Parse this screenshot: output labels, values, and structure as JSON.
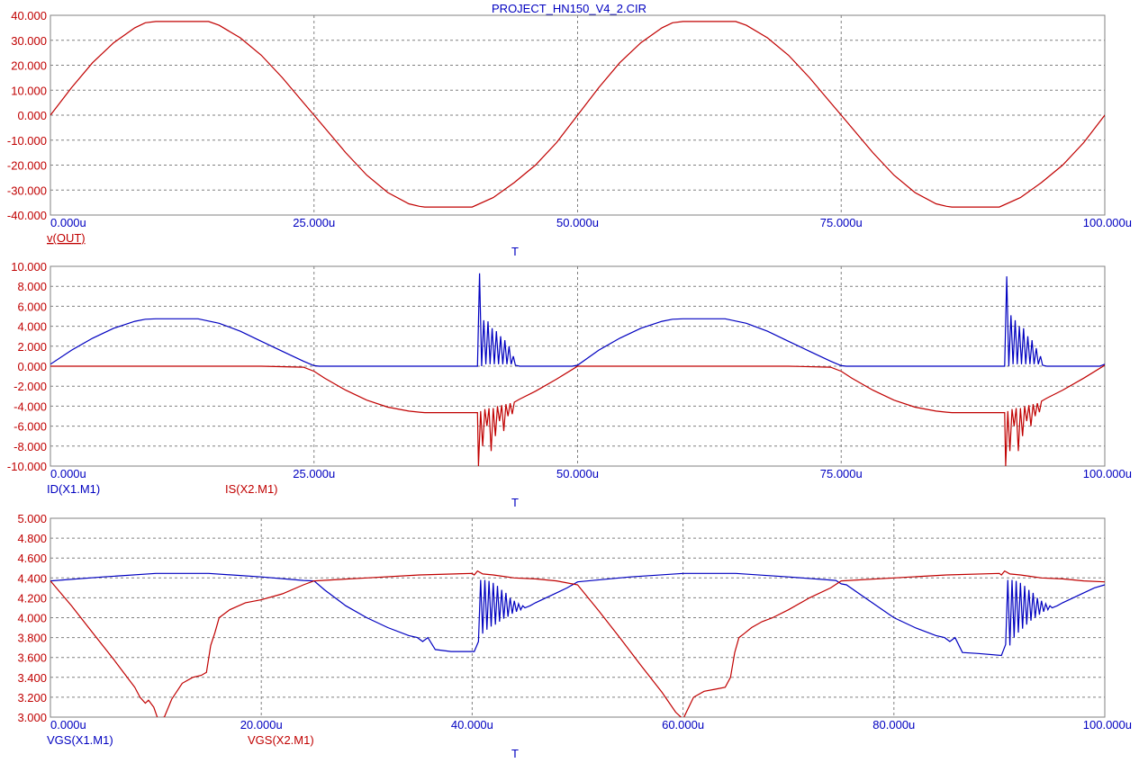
{
  "title": "PROJECT_HN150_V4_2.CIR",
  "colors": {
    "red": "#c00000",
    "blue": "#0000c0",
    "grid": "#808080",
    "frame": "#808080"
  },
  "chart_data": [
    {
      "type": "line",
      "xlabel": "T",
      "x_range": [
        0,
        100
      ],
      "xticks": [
        "0.000u",
        "25.000u",
        "50.000u",
        "75.000u",
        "100.000u"
      ],
      "xtick_values": [
        0,
        25,
        50,
        75,
        100
      ],
      "ylim": [
        -40,
        40
      ],
      "yticks": [
        "40.000",
        "30.000",
        "20.000",
        "10.000",
        "0.000",
        "-10.000",
        "-20.000",
        "-30.000",
        "-40.000"
      ],
      "ytick_values": [
        40,
        30,
        20,
        10,
        0,
        -10,
        -20,
        -30,
        -40
      ],
      "ytick_color": "#c00000",
      "grid": true,
      "series": [
        {
          "name": "v(OUT)",
          "color": "#c00000",
          "underline": true,
          "x": [
            0,
            2,
            4,
            6,
            8,
            9,
            10,
            15,
            16,
            18,
            20,
            22,
            24,
            25,
            26,
            28,
            30,
            32,
            34,
            35,
            35.5,
            40,
            42,
            44,
            46,
            48,
            50,
            52,
            54,
            56,
            58,
            59,
            60,
            65,
            66,
            68,
            70,
            72,
            74,
            75,
            76,
            78,
            80,
            82,
            84,
            85,
            85.5,
            90,
            92,
            94,
            96,
            98,
            100
          ],
          "y": [
            0,
            11,
            21,
            29,
            35,
            37,
            37.5,
            37.5,
            36,
            31,
            24,
            15,
            5,
            0,
            -5,
            -15,
            -24,
            -31,
            -35.5,
            -36.5,
            -36.8,
            -36.8,
            -33,
            -27,
            -20,
            -11,
            0,
            11,
            21,
            29,
            35,
            37,
            37.5,
            37.5,
            36,
            31,
            24,
            15,
            5,
            0,
            -5,
            -15,
            -24,
            -31,
            -35.5,
            -36.5,
            -36.8,
            -36.8,
            -33,
            -27,
            -20,
            -11,
            0
          ]
        }
      ]
    },
    {
      "type": "line",
      "xlabel": "T",
      "x_range": [
        0,
        100
      ],
      "xticks": [
        "0.000u",
        "25.000u",
        "50.000u",
        "75.000u",
        "100.000u"
      ],
      "xtick_values": [
        0,
        25,
        50,
        75,
        100
      ],
      "ylim": [
        -10,
        10
      ],
      "yticks": [
        "10.000",
        "8.000",
        "6.000",
        "4.000",
        "2.000",
        "0.000",
        "-2.000",
        "-4.000",
        "-6.000",
        "-8.000",
        "-10.000"
      ],
      "ytick_values": [
        10,
        8,
        6,
        4,
        2,
        0,
        -2,
        -4,
        -6,
        -8,
        -10
      ],
      "ytick_color": "#c00000",
      "grid": true,
      "series": [
        {
          "name": "ID(X1.M1)",
          "color": "#0000c0",
          "x": [
            0,
            2,
            4,
            6,
            8,
            9,
            10,
            14,
            16,
            18,
            20,
            22,
            24,
            25,
            25.5,
            40.5,
            40.7,
            40.9,
            41.1,
            41.3,
            41.5,
            41.7,
            41.9,
            42.1,
            42.3,
            42.5,
            42.7,
            42.9,
            43.1,
            43.3,
            43.5,
            43.7,
            43.9,
            44.1,
            44.5,
            49.5,
            50,
            52,
            54,
            56,
            58,
            59,
            60,
            64,
            66,
            68,
            70,
            72,
            74,
            75,
            75.5,
            90.5,
            90.7,
            90.9,
            91.1,
            91.3,
            91.5,
            91.7,
            91.9,
            92.1,
            92.3,
            92.5,
            92.7,
            92.9,
            93.1,
            93.3,
            93.5,
            93.7,
            93.9,
            94.1,
            94.5,
            99.5,
            100
          ],
          "y": [
            0.2,
            1.6,
            2.8,
            3.8,
            4.5,
            4.7,
            4.75,
            4.75,
            4.3,
            3.5,
            2.5,
            1.5,
            0.5,
            0.05,
            0,
            0,
            9.3,
            0,
            4.6,
            0.2,
            4.5,
            0.2,
            3.8,
            0.2,
            3.5,
            0.2,
            3.0,
            0.2,
            2.6,
            0.2,
            2.0,
            0.2,
            1.0,
            0.1,
            0,
            0,
            0.1,
            1.6,
            2.8,
            3.8,
            4.5,
            4.7,
            4.75,
            4.75,
            4.3,
            3.5,
            2.5,
            1.5,
            0.5,
            0.05,
            0,
            0,
            9.0,
            0,
            5.1,
            0.2,
            4.6,
            0.2,
            4.0,
            0.2,
            3.8,
            0.2,
            3.0,
            0.2,
            2.6,
            0.2,
            1.8,
            0.2,
            1.0,
            0.1,
            0,
            0,
            0.2
          ]
        },
        {
          "name": "IS(X2.M1)",
          "color": "#c00000",
          "x": [
            0,
            10,
            20,
            24,
            25,
            26,
            28,
            30,
            32,
            34,
            35,
            35.5,
            40.5,
            40.6,
            40.8,
            41.0,
            41.2,
            41.4,
            41.6,
            41.8,
            42.0,
            42.2,
            42.4,
            42.6,
            42.8,
            43.0,
            43.2,
            43.4,
            43.6,
            43.8,
            44.0,
            44.5,
            46,
            48,
            50,
            60,
            70,
            74,
            75,
            76,
            78,
            80,
            82,
            84,
            85,
            85.5,
            90.5,
            90.6,
            90.8,
            91.0,
            91.2,
            91.4,
            91.6,
            91.8,
            92.0,
            92.2,
            92.4,
            92.6,
            92.8,
            93.0,
            93.2,
            93.4,
            93.6,
            93.8,
            94.0,
            94.5,
            96,
            98,
            100
          ],
          "y": [
            0,
            0,
            0,
            -0.1,
            -0.5,
            -1.2,
            -2.4,
            -3.4,
            -4.1,
            -4.5,
            -4.6,
            -4.65,
            -4.65,
            -10,
            -4.5,
            -8.0,
            -4.3,
            -6.0,
            -4.2,
            -8.5,
            -4.2,
            -7.0,
            -4.0,
            -5.5,
            -3.9,
            -6.5,
            -3.8,
            -5.0,
            -3.7,
            -4.8,
            -3.6,
            -3.3,
            -2.5,
            -1.3,
            0,
            0,
            0,
            -0.1,
            -0.5,
            -1.2,
            -2.4,
            -3.4,
            -4.1,
            -4.5,
            -4.6,
            -4.65,
            -4.65,
            -10,
            -4.5,
            -8.5,
            -4.3,
            -6.0,
            -4.2,
            -8.5,
            -4.2,
            -7.0,
            -4.0,
            -5.5,
            -3.9,
            -6.0,
            -3.8,
            -5.0,
            -3.7,
            -4.6,
            -3.5,
            -3.2,
            -2.4,
            -1.2,
            0.1
          ]
        }
      ]
    },
    {
      "type": "line",
      "xlabel": "T",
      "x_range": [
        0,
        100
      ],
      "xticks": [
        "0.000u",
        "20.000u",
        "40.000u",
        "60.000u",
        "80.000u",
        "100.000u"
      ],
      "xtick_values": [
        0,
        20,
        40,
        60,
        80,
        100
      ],
      "ylim": [
        3.0,
        5.0
      ],
      "yticks": [
        "5.000",
        "4.800",
        "4.600",
        "4.400",
        "4.200",
        "4.000",
        "3.800",
        "3.600",
        "3.400",
        "3.200",
        "3.000"
      ],
      "ytick_values": [
        5.0,
        4.8,
        4.6,
        4.4,
        4.2,
        4.0,
        3.8,
        3.6,
        3.4,
        3.2,
        3.0
      ],
      "ytick_color": "#c00000",
      "grid": true,
      "series": [
        {
          "name": "VGS(X1.M1)",
          "color": "#0000c0",
          "x": [
            0,
            5,
            10,
            15,
            20,
            24,
            25,
            26,
            28,
            30,
            32,
            34,
            34.8,
            35.3,
            35.8,
            36.5,
            38,
            40.2,
            40.6,
            40.8,
            41.0,
            41.2,
            41.4,
            41.6,
            41.8,
            42.0,
            42.2,
            42.4,
            42.6,
            42.8,
            43.0,
            43.2,
            43.4,
            43.6,
            43.8,
            44.0,
            44.2,
            44.4,
            44.6,
            44.8,
            45.0,
            45.5,
            46,
            47,
            48,
            49,
            50,
            55,
            60,
            65,
            70,
            74.5,
            75,
            75.5,
            77,
            80,
            82,
            84,
            84.8,
            85.3,
            85.8,
            86.5,
            88,
            90.2,
            90.6,
            90.8,
            91.0,
            91.2,
            91.4,
            91.6,
            91.8,
            92.0,
            92.2,
            92.4,
            92.6,
            92.8,
            93.0,
            93.2,
            93.4,
            93.6,
            93.8,
            94.0,
            94.2,
            94.4,
            94.6,
            94.8,
            95.0,
            95.5,
            96,
            97,
            98,
            99,
            100
          ],
          "y": [
            4.37,
            4.41,
            4.445,
            4.445,
            4.41,
            4.375,
            4.37,
            4.28,
            4.12,
            4.0,
            3.9,
            3.82,
            3.8,
            3.76,
            3.8,
            3.68,
            3.66,
            3.66,
            3.76,
            4.38,
            3.84,
            4.38,
            3.88,
            4.37,
            3.91,
            4.35,
            3.93,
            4.32,
            3.96,
            4.28,
            3.99,
            4.25,
            4.01,
            4.2,
            4.04,
            4.17,
            4.06,
            4.14,
            4.08,
            4.12,
            4.1,
            4.12,
            4.15,
            4.2,
            4.25,
            4.3,
            4.36,
            4.41,
            4.445,
            4.445,
            4.41,
            4.375,
            4.34,
            4.33,
            4.22,
            4.0,
            3.9,
            3.82,
            3.8,
            3.76,
            3.8,
            3.65,
            3.64,
            3.62,
            3.73,
            4.38,
            3.72,
            4.38,
            3.8,
            4.37,
            3.85,
            4.35,
            3.89,
            4.32,
            3.93,
            4.28,
            3.97,
            4.25,
            4.0,
            4.2,
            4.03,
            4.17,
            4.06,
            4.14,
            4.08,
            4.12,
            4.1,
            4.12,
            4.15,
            4.2,
            4.25,
            4.3,
            4.33
          ]
        },
        {
          "name": "VGS(X2.M1)",
          "color": "#c00000",
          "x": [
            0,
            2,
            4,
            6,
            8,
            8.5,
            9,
            9.3,
            9.8,
            10.2,
            10.8,
            11.5,
            12.5,
            13.5,
            14.3,
            14.8,
            15.2,
            15.6,
            16,
            17,
            18.5,
            20,
            22,
            24,
            25,
            30,
            35,
            40,
            40.2,
            40.5,
            41,
            42,
            44,
            46,
            48,
            50,
            52,
            54,
            56,
            58,
            59.3,
            60,
            61,
            62,
            63,
            64,
            64.5,
            64.9,
            65.3,
            65.8,
            66.5,
            67.5,
            68.5,
            70,
            72,
            74,
            75,
            80,
            85,
            90,
            90.2,
            90.5,
            91,
            92,
            94,
            96,
            98,
            100
          ],
          "y": [
            4.37,
            4.12,
            3.85,
            3.58,
            3.3,
            3.2,
            3.14,
            3.17,
            3.1,
            2.98,
            3.0,
            3.18,
            3.34,
            3.4,
            3.42,
            3.45,
            3.72,
            3.85,
            4.0,
            4.08,
            4.15,
            4.18,
            4.24,
            4.33,
            4.37,
            4.4,
            4.43,
            4.445,
            4.43,
            4.47,
            4.44,
            4.43,
            4.4,
            4.39,
            4.37,
            4.33,
            4.07,
            3.8,
            3.52,
            3.25,
            3.05,
            2.98,
            3.2,
            3.26,
            3.28,
            3.3,
            3.4,
            3.65,
            3.8,
            3.84,
            3.9,
            3.96,
            4.0,
            4.08,
            4.2,
            4.3,
            4.37,
            4.4,
            4.43,
            4.445,
            4.43,
            4.47,
            4.44,
            4.43,
            4.4,
            4.39,
            4.37,
            4.36
          ]
        }
      ]
    }
  ]
}
